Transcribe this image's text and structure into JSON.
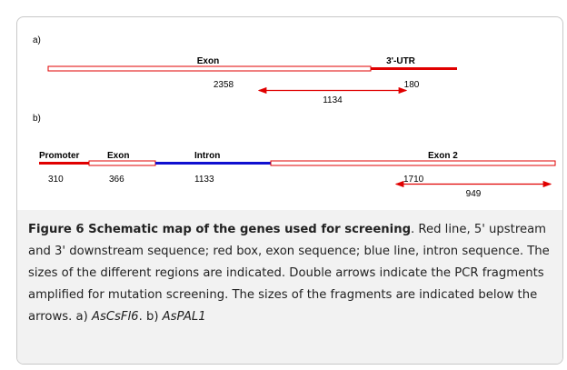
{
  "panel_a": {
    "label": "a)",
    "segments": [
      "Exon",
      "3'-UTR"
    ],
    "sizes": [
      2358,
      180
    ],
    "fragment": 1134
  },
  "panel_b": {
    "label": "b)",
    "segments": [
      "Promoter",
      "Exon",
      "Intron",
      "Exon 2"
    ],
    "sizes": [
      310,
      366,
      1133,
      1710
    ],
    "fragment": 949
  },
  "caption": {
    "parts": [
      {
        "text": "Figure 6 Schematic map of the genes used for screening",
        "bold": true
      },
      {
        "text": ". Red line, 5' upstream and 3' downstream sequence; red box, exon sequence; blue line, intron sequence. The sizes of the different regions are indicated. Double arrows indicate the PCR fragments amplified for mutation screening. The sizes of the fragments are indicated below the arrows. a) "
      },
      {
        "text": "AsCsFl6",
        "italic": true
      },
      {
        "text": ". b) "
      },
      {
        "text": "AsPAL1",
        "italic": true
      }
    ]
  }
}
